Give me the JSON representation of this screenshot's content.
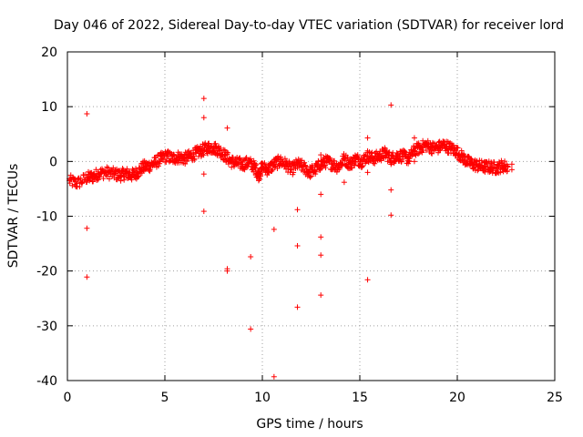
{
  "chart_data": {
    "type": "scatter",
    "title": "Day 046 of 2022, Sidereal Day-to-day VTEC variation (SDTVAR) for receiver lord",
    "xlabel": "GPS time / hours",
    "ylabel": "SDTVAR / TECUs",
    "xlim": [
      0,
      25
    ],
    "ylim": [
      -40,
      20
    ],
    "xticks": [
      "0",
      "5",
      "10",
      "15",
      "20",
      "25"
    ],
    "yticks": [
      "20",
      "10",
      "0",
      "-10",
      "-20",
      "-30",
      "-40"
    ],
    "grid": true,
    "marker": "+",
    "color": "#ff0000",
    "trend": [
      [
        0.1,
        -3.5
      ],
      [
        0.5,
        -4.0
      ],
      [
        1.0,
        -3.0
      ],
      [
        1.3,
        -2.8
      ],
      [
        1.6,
        -2.2
      ],
      [
        2.0,
        -2.0
      ],
      [
        2.4,
        -2.3
      ],
      [
        2.7,
        -2.5
      ],
      [
        3.0,
        -2.2
      ],
      [
        3.3,
        -2.5
      ],
      [
        3.6,
        -2.0
      ],
      [
        3.9,
        -1.0
      ],
      [
        4.2,
        -0.8
      ],
      [
        4.5,
        -0.2
      ],
      [
        4.8,
        0.5
      ],
      [
        5.1,
        1.0
      ],
      [
        5.4,
        0.5
      ],
      [
        5.7,
        0.8
      ],
      [
        6.0,
        0.5
      ],
      [
        6.3,
        1.0
      ],
      [
        6.6,
        1.5
      ],
      [
        6.9,
        2.0
      ],
      [
        7.2,
        2.5
      ],
      [
        7.5,
        2.5
      ],
      [
        7.8,
        2.0
      ],
      [
        8.1,
        1.0
      ],
      [
        8.4,
        0.0
      ],
      [
        8.7,
        -0.3
      ],
      [
        9.0,
        -0.5
      ],
      [
        9.3,
        -0.2
      ],
      [
        9.6,
        -1.0
      ],
      [
        9.8,
        -2.5
      ],
      [
        10.0,
        -1.0
      ],
      [
        10.3,
        -1.5
      ],
      [
        10.6,
        -0.5
      ],
      [
        10.9,
        0.0
      ],
      [
        11.2,
        -0.5
      ],
      [
        11.5,
        -1.5
      ],
      [
        11.8,
        -0.5
      ],
      [
        12.1,
        -1.0
      ],
      [
        12.4,
        -2.0
      ],
      [
        12.7,
        -1.5
      ],
      [
        13.0,
        -0.5
      ],
      [
        13.3,
        0.0
      ],
      [
        13.6,
        -0.5
      ],
      [
        13.9,
        -1.0
      ],
      [
        14.2,
        0.5
      ],
      [
        14.5,
        -0.5
      ],
      [
        14.8,
        0.5
      ],
      [
        15.1,
        0.0
      ],
      [
        15.4,
        1.0
      ],
      [
        15.7,
        0.5
      ],
      [
        16.0,
        1.0
      ],
      [
        16.3,
        1.5
      ],
      [
        16.6,
        0.5
      ],
      [
        16.9,
        1.0
      ],
      [
        17.2,
        1.0
      ],
      [
        17.5,
        0.5
      ],
      [
        17.8,
        2.0
      ],
      [
        18.1,
        2.5
      ],
      [
        18.4,
        3.0
      ],
      [
        18.7,
        2.5
      ],
      [
        19.0,
        2.5
      ],
      [
        19.3,
        3.0
      ],
      [
        19.6,
        2.5
      ],
      [
        19.9,
        2.0
      ],
      [
        20.2,
        1.0
      ],
      [
        20.5,
        0.0
      ],
      [
        20.8,
        -0.5
      ],
      [
        21.1,
        -0.8
      ],
      [
        21.4,
        -1.0
      ],
      [
        21.7,
        -1.0
      ],
      [
        22.0,
        -1.2
      ],
      [
        22.3,
        -0.8
      ],
      [
        22.6,
        -1.0
      ]
    ],
    "outliers": [
      [
        1.0,
        8.7
      ],
      [
        1.0,
        -12.2
      ],
      [
        1.0,
        -21.1
      ],
      [
        7.0,
        11.5
      ],
      [
        7.0,
        8.0
      ],
      [
        7.0,
        -2.3
      ],
      [
        7.0,
        -9.1
      ],
      [
        8.2,
        6.1
      ],
      [
        8.2,
        -19.6
      ],
      [
        8.2,
        -20.0
      ],
      [
        9.4,
        -17.4
      ],
      [
        9.4,
        -30.6
      ],
      [
        10.6,
        -12.4
      ],
      [
        10.6,
        -39.3
      ],
      [
        11.8,
        -8.8
      ],
      [
        11.8,
        -15.4
      ],
      [
        11.8,
        -26.6
      ],
      [
        13.0,
        1.2
      ],
      [
        13.0,
        -6.0
      ],
      [
        13.0,
        -13.8
      ],
      [
        13.0,
        -17.1
      ],
      [
        13.0,
        -24.4
      ],
      [
        14.2,
        -3.8
      ],
      [
        15.4,
        4.3
      ],
      [
        15.4,
        -2.0
      ],
      [
        15.4,
        -21.6
      ],
      [
        16.6,
        10.3
      ],
      [
        16.6,
        -5.2
      ],
      [
        16.6,
        -9.8
      ],
      [
        17.8,
        4.3
      ],
      [
        17.8,
        0.0
      ],
      [
        22.8,
        -0.5
      ],
      [
        22.8,
        -1.5
      ]
    ]
  }
}
